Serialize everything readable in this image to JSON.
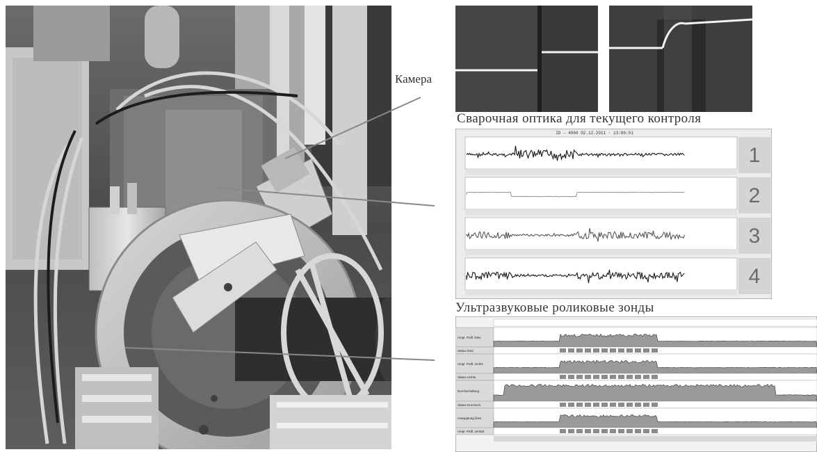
{
  "labels": {
    "camera": "Камера",
    "optics_caption": "Сварочная оптика для текущего контроля",
    "ultrasonic_caption": "Ультразвуковые роликовые зонды"
  },
  "optics_chart": {
    "header": "ID – 4060 02.12.2011 · 13:06:51",
    "channel_numbers": [
      "1",
      "2",
      "3",
      "4"
    ]
  },
  "ultrasonic_chart": {
    "rows": [
      {
        "label": "Ampl. Prüfl. links"
      },
      {
        "label": "Status links"
      },
      {
        "label": "Ampl. Prüfl. rechts"
      },
      {
        "label": "Status rechts"
      },
      {
        "label": "Durchschallung"
      },
      {
        "label": "Status Durchsch."
      },
      {
        "label": "Ankopplung links"
      },
      {
        "label": "Ampl. Prüfl. zentral"
      }
    ]
  },
  "colors": {
    "background": "#ffffff",
    "caption_text": "#333333",
    "panel_border": "#7a7a7a",
    "signal_dark": "#151515",
    "signal_mid": "#555555",
    "status_fill": "#9a9a9a"
  }
}
